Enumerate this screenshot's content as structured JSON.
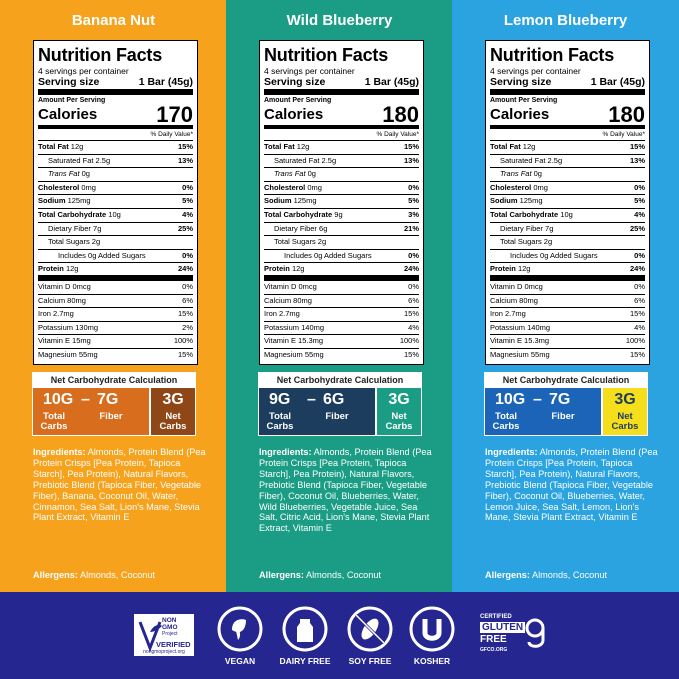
{
  "panels": [
    {
      "title": "Banana Nut",
      "nutrition": {
        "title": "Nutrition Facts",
        "servings": "4 servings per container",
        "serving_size_label": "Serving size",
        "serving_size": "1 Bar (45g)",
        "amount_per_serving": "Amount Per Serving",
        "calories_label": "Calories",
        "calories": "170",
        "dv_header": "% Daily Value*",
        "rows": [
          {
            "label": "Total Fat",
            "amount": "12g",
            "dv": "15%"
          },
          {
            "label": "Saturated Fat",
            "amount": "2.5g",
            "dv": "13%"
          },
          {
            "label": "Trans Fat",
            "amount": "0g"
          },
          {
            "label": "Cholesterol",
            "amount": "0mg",
            "dv": "0%"
          },
          {
            "label": "Sodium",
            "amount": "125mg",
            "dv": "5%"
          },
          {
            "label": "Total Carbohydrate",
            "amount": "10g",
            "dv": "4%"
          },
          {
            "label": "Dietary Fiber",
            "amount": "7g",
            "dv": "25%"
          },
          {
            "label": "Total Sugars",
            "amount": "2g"
          },
          {
            "label": "Includes 0g Added Sugars",
            "dv": "0%"
          },
          {
            "label": "Protein",
            "amount": "12g",
            "dv": "24%"
          }
        ],
        "vitamins": [
          {
            "label": "Vitamin D 0mcg",
            "dv": "0%"
          },
          {
            "label": "Calcium 80mg",
            "dv": "6%"
          },
          {
            "label": "Iron 2.7mg",
            "dv": "15%"
          },
          {
            "label": "Potassium 130mg",
            "dv": "2%"
          },
          {
            "label": "Vitamin E 15mg",
            "dv": "100%"
          },
          {
            "label": "Magnesium 55mg",
            "dv": "15%"
          }
        ]
      },
      "net_carb": {
        "title": "Net Carbohydrate Calculation",
        "total": "10G",
        "total_label": "Total Carbs",
        "minus": "–",
        "fiber": "7G",
        "fiber_label": "Fiber",
        "net": "3G",
        "net_label": "Net Carbs"
      },
      "ingredients_label": "Ingredients:",
      "ingredients": "Almonds, Protein Blend (Pea Protein Crisps [Pea Protein, Tapioca Starch], Pea Protein), Natural Flavors, Prebiotic Blend (Tapioca Fiber, Vegetable Fiber), Banana, Coconut Oil, Water, Cinnamon, Sea Salt, Lion's Mane, Stevia Plant Extract, Vitamin E",
      "allergens_label": "Allergens:",
      "allergens": "Almonds, Coconut"
    },
    {
      "title": "Wild Blueberry",
      "nutrition": {
        "title": "Nutrition Facts",
        "servings": "4 servings per container",
        "serving_size_label": "Serving size",
        "serving_size": "1 Bar (45g)",
        "amount_per_serving": "Amount Per Serving",
        "calories_label": "Calories",
        "calories": "180",
        "dv_header": "% Daily Value*",
        "rows": [
          {
            "label": "Total Fat",
            "amount": "12g",
            "dv": "15%"
          },
          {
            "label": "Saturated Fat",
            "amount": "2.5g",
            "dv": "13%"
          },
          {
            "label": "Trans Fat",
            "amount": "0g"
          },
          {
            "label": "Cholesterol",
            "amount": "0mg",
            "dv": "0%"
          },
          {
            "label": "Sodium",
            "amount": "125mg",
            "dv": "5%"
          },
          {
            "label": "Total Carbohydrate",
            "amount": "9g",
            "dv": "3%"
          },
          {
            "label": "Dietary Fiber",
            "amount": "6g",
            "dv": "21%"
          },
          {
            "label": "Total Sugars",
            "amount": "2g"
          },
          {
            "label": "Includes 0g Added Sugars",
            "dv": "0%"
          },
          {
            "label": "Protein",
            "amount": "12g",
            "dv": "24%"
          }
        ],
        "vitamins": [
          {
            "label": "Vitamin D 0mcg",
            "dv": "0%"
          },
          {
            "label": "Calcium 80mg",
            "dv": "6%"
          },
          {
            "label": "Iron 2.7mg",
            "dv": "15%"
          },
          {
            "label": "Potassium 140mg",
            "dv": "4%"
          },
          {
            "label": "Vitamin E 15.3mg",
            "dv": "100%"
          },
          {
            "label": "Magnesium 55mg",
            "dv": "15%"
          }
        ]
      },
      "net_carb": {
        "title": "Net Carbohydrate Calculation",
        "total": "9G",
        "total_label": "Total Carbs",
        "minus": "–",
        "fiber": "6G",
        "fiber_label": "Fiber",
        "net": "3G",
        "net_label": "Net Carbs"
      },
      "ingredients_label": "Ingredients:",
      "ingredients": "Almonds, Protein Blend (Pea Protein Crisps [Pea Protein, Tapioca Starch], Pea Protein), Natural Flavors, Prebiotic Blend (Tapioca Fiber, Vegetable Fiber), Coconut Oil, Blueberries, Water, Wild Blueberries, Vegetable Juice, Sea Salt, Citric Acid, Lion's Mane, Stevia Plant Extract, Vitamin E",
      "allergens_label": "Allergens:",
      "allergens": "Almonds, Coconut"
    },
    {
      "title": "Lemon Blueberry",
      "nutrition": {
        "title": "Nutrition Facts",
        "servings": "4 servings per container",
        "serving_size_label": "Serving size",
        "serving_size": "1 Bar (45g)",
        "amount_per_serving": "Amount Per Serving",
        "calories_label": "Calories",
        "calories": "180",
        "dv_header": "% Daily Value*",
        "rows": [
          {
            "label": "Total Fat",
            "amount": "12g",
            "dv": "15%"
          },
          {
            "label": "Saturated Fat",
            "amount": "2.5g",
            "dv": "13%"
          },
          {
            "label": "Trans Fat",
            "amount": "0g"
          },
          {
            "label": "Cholesterol",
            "amount": "0mg",
            "dv": "0%"
          },
          {
            "label": "Sodium",
            "amount": "125mg",
            "dv": "5%"
          },
          {
            "label": "Total Carbohydrate",
            "amount": "10g",
            "dv": "4%"
          },
          {
            "label": "Dietary Fiber",
            "amount": "7g",
            "dv": "25%"
          },
          {
            "label": "Total Sugars",
            "amount": "2g"
          },
          {
            "label": "Includes 0g Added Sugars",
            "dv": "0%"
          },
          {
            "label": "Protein",
            "amount": "12g",
            "dv": "24%"
          }
        ],
        "vitamins": [
          {
            "label": "Vitamin D 0mcg",
            "dv": "0%"
          },
          {
            "label": "Calcium 80mg",
            "dv": "6%"
          },
          {
            "label": "Iron 2.7mg",
            "dv": "15%"
          },
          {
            "label": "Potassium 140mg",
            "dv": "4%"
          },
          {
            "label": "Vitamin E 15.3mg",
            "dv": "100%"
          },
          {
            "label": "Magnesium 55mg",
            "dv": "15%"
          }
        ]
      },
      "net_carb": {
        "title": "Net Carbohydrate Calculation",
        "total": "10G",
        "total_label": "Total Carbs",
        "minus": "–",
        "fiber": "7G",
        "fiber_label": "Fiber",
        "net": "3G",
        "net_label": "Net Carbs"
      },
      "ingredients_label": "Ingredients:",
      "ingredients": "Almonds, Protein Blend (Pea Protein Crisps [Pea Protein, Tapioca Starch], Pea Protein), Natural Flavors, Prebiotic Blend (Tapioca Fiber, Vegetable Fiber), Coconut Oil, Blueberries, Water, Lemon Juice, Sea Salt, Lemon, Lion's Mane, Stevia Plant Extract, Vitamin E",
      "allergens_label": "Allergens:",
      "allergens": "Almonds, Coconut"
    }
  ],
  "footer": {
    "non_gmo": {
      "top": "NON GMO",
      "middle": "Project",
      "verified": "VERIFIED",
      "url": "nongmoproject.org"
    },
    "badges": [
      {
        "label": "VEGAN"
      },
      {
        "label": "DAIRY FREE"
      },
      {
        "label": "SOY FREE"
      },
      {
        "label": "KOSHER"
      }
    ],
    "gluten_free": {
      "certified": "CERTIFIED",
      "gluten": "GLUTEN",
      "free": "FREE",
      "url": "GFCO.ORG"
    }
  }
}
